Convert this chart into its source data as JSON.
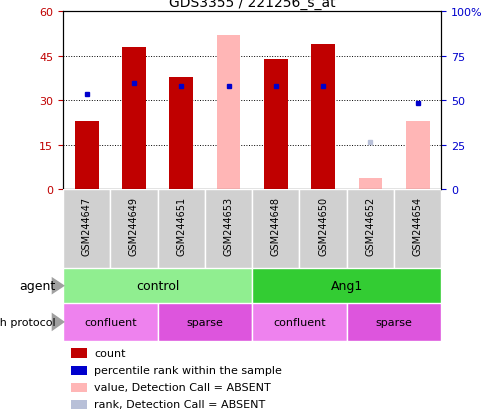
{
  "title": "GDS3355 / 221256_s_at",
  "samples": [
    "GSM244647",
    "GSM244649",
    "GSM244651",
    "GSM244653",
    "GSM244648",
    "GSM244650",
    "GSM244652",
    "GSM244654"
  ],
  "count_values": [
    23,
    48,
    38,
    null,
    44,
    49,
    null,
    null
  ],
  "count_absent_values": [
    null,
    null,
    null,
    52,
    null,
    null,
    4,
    23
  ],
  "rank_values": [
    32,
    36,
    35,
    35,
    35,
    35,
    null,
    29
  ],
  "rank_absent_values": [
    null,
    null,
    null,
    null,
    null,
    null,
    16,
    null
  ],
  "ylim_left": [
    0,
    60
  ],
  "ylim_right": [
    0,
    100
  ],
  "yticks_left": [
    0,
    15,
    30,
    45,
    60
  ],
  "yticks_right": [
    0,
    25,
    50,
    75,
    100
  ],
  "color_count": "#c00000",
  "color_rank": "#0000cd",
  "color_count_absent": "#ffb6b6",
  "color_rank_absent": "#b8c0d8",
  "bar_width": 0.5,
  "agent_control_color": "#90ee90",
  "agent_ang1_color": "#33cc33",
  "growth_confluent_color": "#ee82ee",
  "growth_sparse_color": "#dd55dd",
  "sample_box_color": "#d0d0d0",
  "legend_items": [
    {
      "label": "count",
      "color": "#c00000"
    },
    {
      "label": "percentile rank within the sample",
      "color": "#0000cd"
    },
    {
      "label": "value, Detection Call = ABSENT",
      "color": "#ffb6b6"
    },
    {
      "label": "rank, Detection Call = ABSENT",
      "color": "#b8c0d8"
    }
  ]
}
